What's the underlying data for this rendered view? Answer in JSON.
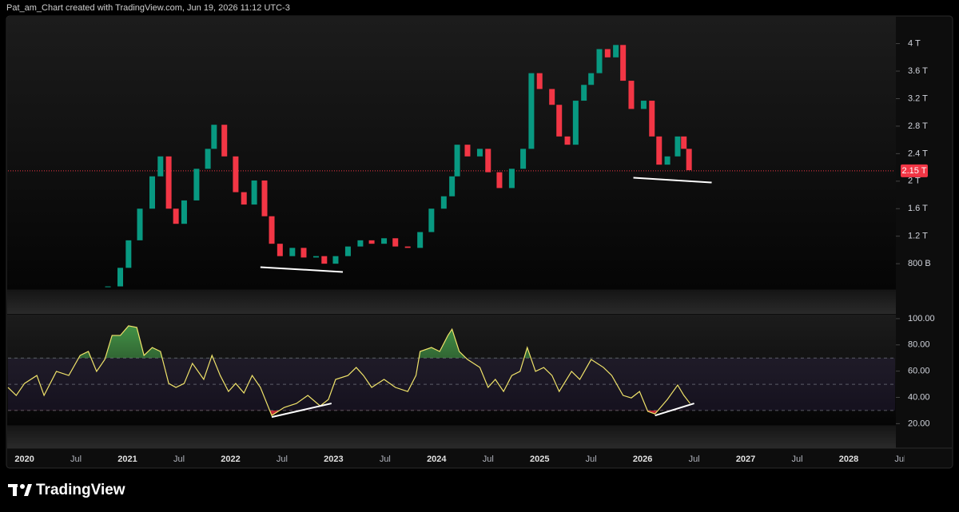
{
  "header": "Pat_am_Chart created with TradingView.com, Jun 19, 2026 11:12 UTC-3",
  "brand": "TradingView",
  "chart_data": [
    {
      "type": "candlestick",
      "x": [
        2020.81,
        2020.93,
        2021.01,
        2021.12,
        2021.24,
        2021.32,
        2021.4,
        2021.47,
        2021.55,
        2021.67,
        2021.78,
        2021.84,
        2021.94,
        2022.05,
        2022.13,
        2022.23,
        2022.33,
        2022.4,
        2022.48,
        2022.6,
        2022.71,
        2022.83,
        2022.91,
        2023.02,
        2023.14,
        2023.26,
        2023.37,
        2023.49,
        2023.6,
        2023.72,
        2023.84,
        2023.95,
        2024.07,
        2024.15,
        2024.2,
        2024.3,
        2024.42,
        2024.5,
        2024.61,
        2024.73,
        2024.84,
        2024.92,
        2025.0,
        2025.12,
        2025.19,
        2025.27,
        2025.35,
        2025.43,
        2025.5,
        2025.58,
        2025.66,
        2025.74,
        2025.81,
        2025.89,
        2026.01,
        2026.09,
        2026.16,
        2026.24,
        2026.34,
        2026.4,
        2026.45
      ],
      "values": [
        0.47,
        0.74,
        1.14,
        1.6,
        2.07,
        2.36,
        1.6,
        1.38,
        1.72,
        2.18,
        2.47,
        2.82,
        2.36,
        1.84,
        1.66,
        2.01,
        1.49,
        1.09,
        0.91,
        1.03,
        0.89,
        0.91,
        0.8,
        0.91,
        1.05,
        1.14,
        1.09,
        1.17,
        1.05,
        1.03,
        1.26,
        1.6,
        1.78,
        2.07,
        2.53,
        2.36,
        2.47,
        2.13,
        1.9,
        2.18,
        2.47,
        3.57,
        3.34,
        3.11,
        2.65,
        2.53,
        3.17,
        3.4,
        3.57,
        3.92,
        3.8,
        3.98,
        3.46,
        3.05,
        3.17,
        2.65,
        2.24,
        2.36,
        2.65,
        2.47,
        2.16
      ],
      "up_color": "#089981",
      "down_color": "#f23645",
      "xlim": [
        2019.84,
        2028.45
      ],
      "ylim": [
        0.43,
        4.39
      ],
      "yticks": [
        {
          "value": 0.8,
          "label": "800 B"
        },
        {
          "value": 1.2,
          "label": "1.2 T"
        },
        {
          "value": 1.6,
          "label": "1.6 T"
        },
        {
          "value": 2,
          "label": "2 T"
        },
        {
          "value": 2.4,
          "label": "2.4 T"
        },
        {
          "value": 2.8,
          "label": "2.8 T"
        },
        {
          "value": 3.2,
          "label": "3.2 T"
        },
        {
          "value": 3.6,
          "label": "3.6 T"
        },
        {
          "value": 4,
          "label": "4 T"
        }
      ],
      "price_line": {
        "value": 2.15,
        "label": "2.15 T",
        "color": "#f23645"
      },
      "trendlines": [
        {
          "x": [
            2022.29,
            2023.09
          ],
          "y": [
            0.75,
            0.68
          ]
        },
        {
          "x": [
            2025.91,
            2026.67
          ],
          "y": [
            2.05,
            1.98
          ]
        }
      ],
      "trendline_color": "#ffffff"
    },
    {
      "type": "line",
      "x": [
        2019.84,
        2019.92,
        2020.0,
        2020.12,
        2020.19,
        2020.31,
        2020.43,
        2020.54,
        2020.62,
        2020.7,
        2020.78,
        2020.85,
        2020.93,
        2021.01,
        2021.09,
        2021.16,
        2021.24,
        2021.32,
        2021.4,
        2021.47,
        2021.55,
        2021.63,
        2021.74,
        2021.82,
        2021.9,
        2021.98,
        2022.05,
        2022.13,
        2022.21,
        2022.29,
        2022.4,
        2022.52,
        2022.64,
        2022.75,
        2022.87,
        2022.95,
        2023.02,
        2023.14,
        2023.22,
        2023.29,
        2023.37,
        2023.49,
        2023.6,
        2023.72,
        2023.8,
        2023.84,
        2023.95,
        2024.03,
        2024.11,
        2024.15,
        2024.22,
        2024.3,
        2024.42,
        2024.5,
        2024.57,
        2024.65,
        2024.73,
        2024.81,
        2024.88,
        2024.96,
        2025.04,
        2025.12,
        2025.19,
        2025.31,
        2025.39,
        2025.5,
        2025.62,
        2025.7,
        2025.81,
        2025.89,
        2025.97,
        2026.05,
        2026.12,
        2026.24,
        2026.34,
        2026.4,
        2026.46
      ],
      "values": [
        47.6,
        41.5,
        50.6,
        56.7,
        41.5,
        59.8,
        56.7,
        72,
        75,
        59.8,
        68.9,
        87.2,
        87.2,
        94.5,
        93.3,
        72,
        78,
        75,
        50.6,
        47.6,
        50.6,
        65.9,
        53.7,
        72,
        56.7,
        44.5,
        50.6,
        43.3,
        56.7,
        47.6,
        26.2,
        32.3,
        35.4,
        41.5,
        33.5,
        38.4,
        53.7,
        56.7,
        62.8,
        56.7,
        47.6,
        53.7,
        47.6,
        44.5,
        56.7,
        75,
        78,
        75,
        87.2,
        92,
        75,
        68.9,
        62.8,
        47.6,
        53.7,
        44.5,
        56.7,
        59.8,
        78,
        59.8,
        62.8,
        56.7,
        44.5,
        59.8,
        53.7,
        68.9,
        62.8,
        56.7,
        41.5,
        39.6,
        44.5,
        29.3,
        27.4,
        38.4,
        49.4,
        41.5,
        35.4
      ],
      "color": "#f0e36a",
      "xlim": [
        2019.84,
        2028.45
      ],
      "ylim": [
        19,
        103
      ],
      "yticks": [
        {
          "value": 20,
          "label": "20.00"
        },
        {
          "value": 40,
          "label": "40.00"
        },
        {
          "value": 60,
          "label": "60.00"
        },
        {
          "value": 80,
          "label": "80.00"
        },
        {
          "value": 100,
          "label": "100.00"
        }
      ],
      "band": [
        30,
        70
      ],
      "midline": 50,
      "band_color": "#7e57c2",
      "overbought_color": "#4caf50",
      "oversold_color": "#f23645",
      "trendlines": [
        {
          "x": [
            2022.4,
            2022.98
          ],
          "y": [
            25,
            35.4
          ]
        },
        {
          "x": [
            2026.12,
            2026.5
          ],
          "y": [
            26.2,
            35.4
          ]
        }
      ],
      "trendline_color": "#ffffff",
      "xticks": [
        2020,
        {
          "value": 2020.5,
          "label": "Jul"
        },
        2021,
        {
          "value": 2021.5,
          "label": "Jul"
        },
        2022,
        {
          "value": 2022.5,
          "label": "Jul"
        },
        2023,
        {
          "value": 2023.5,
          "label": "Jul"
        },
        2024,
        {
          "value": 2024.5,
          "label": "Jul"
        },
        2025,
        {
          "value": 2025.5,
          "label": "Jul"
        },
        2026,
        {
          "value": 2026.5,
          "label": "Jul"
        },
        2027,
        {
          "value": 2027.5,
          "label": "Jul"
        },
        2028,
        {
          "value": 2028.5,
          "label": "Jul"
        }
      ]
    }
  ]
}
